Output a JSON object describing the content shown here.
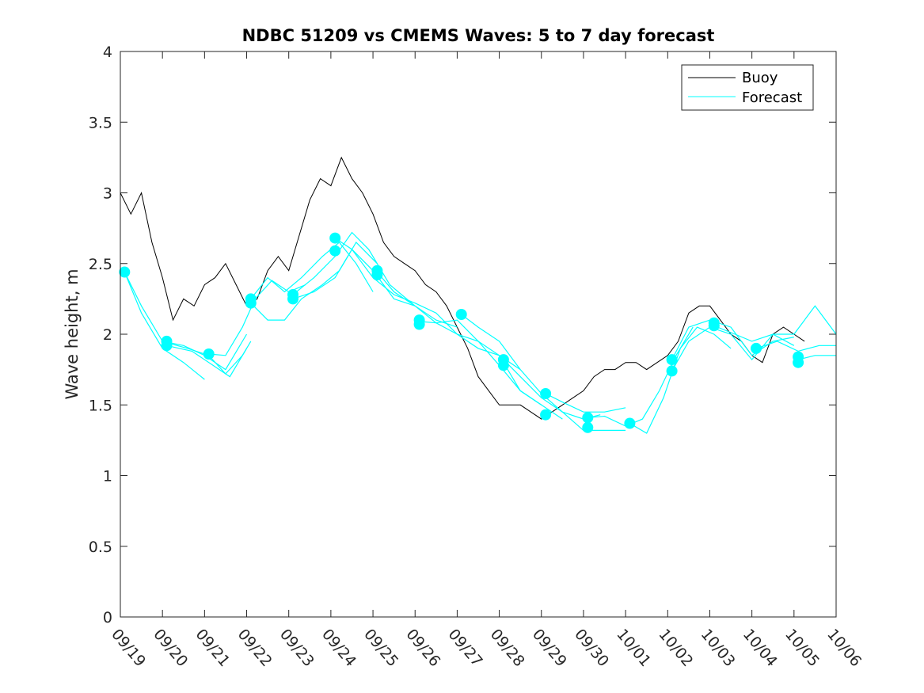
{
  "chart_data": {
    "type": "line",
    "title": "NDBC 51209 vs CMEMS Waves: 5 to 7 day forecast",
    "xlabel": "",
    "ylabel": "Wave height, m",
    "xlim": [
      0,
      17
    ],
    "ylim": [
      0,
      4
    ],
    "yticks": [
      0,
      0.5,
      1,
      1.5,
      2,
      2.5,
      3,
      3.5,
      4
    ],
    "ytick_labels": [
      "0",
      "0.5",
      "1",
      "1.5",
      "2",
      "2.5",
      "3",
      "3.5",
      "4"
    ],
    "xticks": [
      0,
      1,
      2,
      3,
      4,
      5,
      6,
      7,
      8,
      9,
      10,
      11,
      12,
      13,
      14,
      15,
      16,
      17
    ],
    "xtick_labels": [
      "09/19",
      "09/20",
      "09/21",
      "09/22",
      "09/23",
      "09/24",
      "09/25",
      "09/26",
      "09/27",
      "09/28",
      "09/29",
      "09/30",
      "10/01",
      "10/02",
      "10/03",
      "10/04",
      "10/05",
      "10/06"
    ],
    "legend": {
      "position": "top-right",
      "entries": [
        "Buoy",
        "Forecast"
      ]
    },
    "colors": {
      "buoy": "#000000",
      "forecast": "#00ffff"
    },
    "buoy": {
      "name": "Buoy",
      "points": [
        [
          0.0,
          3.0
        ],
        [
          0.25,
          2.85
        ],
        [
          0.5,
          3.0
        ],
        [
          0.75,
          2.65
        ],
        [
          1.0,
          2.4
        ],
        [
          1.25,
          2.1
        ],
        [
          1.5,
          2.25
        ],
        [
          1.75,
          2.2
        ],
        [
          2.0,
          2.35
        ],
        [
          2.25,
          2.4
        ],
        [
          2.5,
          2.5
        ],
        [
          2.75,
          2.35
        ],
        [
          3.0,
          2.2
        ],
        [
          3.25,
          2.25
        ],
        [
          3.5,
          2.45
        ],
        [
          3.75,
          2.55
        ],
        [
          4.0,
          2.45
        ],
        [
          4.25,
          2.7
        ],
        [
          4.5,
          2.95
        ],
        [
          4.75,
          3.1
        ],
        [
          5.0,
          3.05
        ],
        [
          5.25,
          3.25
        ],
        [
          5.5,
          3.1
        ],
        [
          5.75,
          3.0
        ],
        [
          6.0,
          2.85
        ],
        [
          6.25,
          2.65
        ],
        [
          6.5,
          2.55
        ],
        [
          6.75,
          2.5
        ],
        [
          7.0,
          2.45
        ],
        [
          7.25,
          2.35
        ],
        [
          7.5,
          2.3
        ],
        [
          7.75,
          2.2
        ],
        [
          8.0,
          2.05
        ],
        [
          8.25,
          1.9
        ],
        [
          8.5,
          1.7
        ],
        [
          8.75,
          1.6
        ],
        [
          9.0,
          1.5
        ],
        [
          9.25,
          1.5
        ],
        [
          9.5,
          1.5
        ],
        [
          9.75,
          1.45
        ],
        [
          10.0,
          1.4
        ],
        [
          10.25,
          1.45
        ],
        [
          10.5,
          1.5
        ],
        [
          10.75,
          1.55
        ],
        [
          11.0,
          1.6
        ],
        [
          11.25,
          1.7
        ],
        [
          11.5,
          1.75
        ],
        [
          11.75,
          1.75
        ],
        [
          12.0,
          1.8
        ],
        [
          12.25,
          1.8
        ],
        [
          12.5,
          1.75
        ],
        [
          12.75,
          1.8
        ],
        [
          13.0,
          1.85
        ],
        [
          13.25,
          1.95
        ],
        [
          13.5,
          2.15
        ],
        [
          13.75,
          2.2
        ],
        [
          14.0,
          2.2
        ],
        [
          14.25,
          2.1
        ],
        [
          14.5,
          2.0
        ],
        [
          14.75,
          1.95
        ],
        [
          15.0,
          1.85
        ],
        [
          15.25,
          1.8
        ],
        [
          15.5,
          2.0
        ],
        [
          15.75,
          2.05
        ],
        [
          16.0,
          2.0
        ],
        [
          16.25,
          1.95
        ]
      ]
    },
    "forecast": {
      "name": "Forecast",
      "series": [
        [
          [
            0.1,
            2.44
          ],
          [
            0.5,
            2.2
          ],
          [
            1.0,
            1.95
          ],
          [
            1.5,
            1.92
          ],
          [
            2.0,
            1.85
          ],
          [
            2.5,
            1.75
          ],
          [
            3.0,
            2.0
          ]
        ],
        [
          [
            0.1,
            2.44
          ],
          [
            0.5,
            2.15
          ],
          [
            1.0,
            1.9
          ],
          [
            1.5,
            1.8
          ],
          [
            2.0,
            1.68
          ]
        ],
        [
          [
            1.1,
            1.94
          ],
          [
            1.6,
            1.9
          ],
          [
            2.1,
            1.85
          ],
          [
            2.5,
            1.72
          ],
          [
            2.9,
            1.85
          ],
          [
            3.1,
            1.95
          ]
        ],
        [
          [
            1.1,
            1.92
          ],
          [
            1.7,
            1.88
          ],
          [
            2.2,
            1.78
          ],
          [
            2.6,
            1.7
          ],
          [
            3.0,
            1.9
          ]
        ],
        [
          [
            2.1,
            1.86
          ],
          [
            2.5,
            1.85
          ],
          [
            2.9,
            2.05
          ],
          [
            3.2,
            2.25
          ],
          [
            3.6,
            2.38
          ],
          [
            4.0,
            2.3
          ],
          [
            4.4,
            2.35
          ]
        ],
        [
          [
            3.1,
            2.25
          ],
          [
            3.5,
            2.4
          ],
          [
            3.9,
            2.3
          ],
          [
            4.3,
            2.4
          ],
          [
            4.8,
            2.55
          ],
          [
            5.2,
            2.65
          ],
          [
            5.6,
            2.5
          ],
          [
            6.0,
            2.3
          ]
        ],
        [
          [
            3.1,
            2.22
          ],
          [
            3.5,
            2.1
          ],
          [
            3.9,
            2.1
          ],
          [
            4.3,
            2.25
          ],
          [
            4.8,
            2.35
          ],
          [
            5.2,
            2.45
          ],
          [
            5.6,
            2.65
          ],
          [
            6.1,
            2.5
          ]
        ],
        [
          [
            4.1,
            2.28
          ],
          [
            4.6,
            2.4
          ],
          [
            5.1,
            2.55
          ],
          [
            5.5,
            2.72
          ],
          [
            5.9,
            2.6
          ],
          [
            6.4,
            2.35
          ],
          [
            7.0,
            2.2
          ]
        ],
        [
          [
            4.1,
            2.25
          ],
          [
            4.6,
            2.3
          ],
          [
            5.1,
            2.4
          ],
          [
            5.5,
            2.6
          ],
          [
            6.0,
            2.4
          ],
          [
            6.5,
            2.28
          ],
          [
            7.0,
            2.22
          ],
          [
            7.5,
            2.15
          ],
          [
            8.0,
            2.0
          ],
          [
            8.5,
            1.9
          ],
          [
            9.0,
            1.85
          ],
          [
            9.5,
            1.75
          ]
        ],
        [
          [
            5.1,
            2.68
          ],
          [
            5.5,
            2.6
          ],
          [
            6.0,
            2.45
          ],
          [
            6.5,
            2.25
          ],
          [
            7.0,
            2.2
          ],
          [
            7.5,
            2.1
          ],
          [
            8.0,
            2.05
          ]
        ],
        [
          [
            6.1,
            2.44
          ],
          [
            6.5,
            2.3
          ],
          [
            7.0,
            2.2
          ],
          [
            7.5,
            2.08
          ],
          [
            8.0,
            2.0
          ],
          [
            8.5,
            1.95
          ],
          [
            9.0,
            1.85
          ],
          [
            9.5,
            1.6
          ],
          [
            10.0,
            1.5
          ]
        ],
        [
          [
            7.1,
            2.09
          ],
          [
            7.5,
            2.08
          ],
          [
            8.0,
            2.1
          ],
          [
            8.5,
            1.95
          ],
          [
            9.0,
            1.78
          ],
          [
            9.5,
            1.6
          ],
          [
            10.0,
            1.5
          ],
          [
            10.5,
            1.4
          ]
        ],
        [
          [
            8.1,
            2.14
          ],
          [
            8.5,
            2.05
          ],
          [
            9.0,
            1.95
          ],
          [
            9.5,
            1.75
          ],
          [
            10.0,
            1.58
          ],
          [
            10.5,
            1.45
          ],
          [
            11.0,
            1.4
          ],
          [
            11.4,
            1.43
          ]
        ],
        [
          [
            9.1,
            1.82
          ],
          [
            9.5,
            1.7
          ],
          [
            10.0,
            1.55
          ],
          [
            10.5,
            1.45
          ],
          [
            11.0,
            1.32
          ],
          [
            11.5,
            1.32
          ],
          [
            12.0,
            1.32
          ]
        ],
        [
          [
            10.1,
            1.58
          ],
          [
            10.5,
            1.52
          ],
          [
            11.0,
            1.45
          ],
          [
            11.5,
            1.45
          ],
          [
            12.0,
            1.48
          ]
        ],
        [
          [
            11.1,
            1.41
          ],
          [
            11.5,
            1.42
          ],
          [
            12.0,
            1.35
          ],
          [
            12.4,
            1.4
          ],
          [
            12.8,
            1.6
          ],
          [
            13.2,
            1.85
          ],
          [
            13.6,
            2.05
          ]
        ],
        [
          [
            12.1,
            1.37
          ],
          [
            12.5,
            1.3
          ],
          [
            12.9,
            1.55
          ],
          [
            13.3,
            1.9
          ],
          [
            13.7,
            2.05
          ],
          [
            14.1,
            2.0
          ],
          [
            14.5,
            1.9
          ]
        ],
        [
          [
            13.1,
            1.82
          ],
          [
            13.5,
            2.05
          ],
          [
            14.0,
            2.1
          ],
          [
            14.5,
            2.05
          ],
          [
            15.0,
            1.85
          ],
          [
            15.5,
            1.95
          ],
          [
            16.0,
            1.98
          ]
        ],
        [
          [
            13.1,
            1.74
          ],
          [
            13.5,
            1.95
          ],
          [
            14.0,
            2.05
          ],
          [
            14.5,
            2.0
          ],
          [
            15.0,
            1.82
          ],
          [
            15.5,
            2.0
          ],
          [
            16.0,
            1.92
          ]
        ],
        [
          [
            14.1,
            2.06
          ],
          [
            14.6,
            2.0
          ],
          [
            15.0,
            1.95
          ],
          [
            15.5,
            2.0
          ],
          [
            16.0,
            2.0
          ],
          [
            16.5,
            2.2
          ],
          [
            17.0,
            2.0
          ]
        ],
        [
          [
            15.1,
            1.9
          ],
          [
            15.6,
            1.95
          ],
          [
            16.1,
            1.88
          ],
          [
            16.6,
            1.92
          ],
          [
            17.0,
            1.92
          ]
        ],
        [
          [
            16.1,
            1.82
          ],
          [
            16.5,
            1.85
          ],
          [
            17.0,
            1.85
          ]
        ]
      ],
      "markers": [
        [
          0.1,
          2.44
        ],
        [
          1.1,
          1.95
        ],
        [
          1.1,
          1.92
        ],
        [
          2.1,
          1.86
        ],
        [
          3.1,
          2.25
        ],
        [
          3.1,
          2.22
        ],
        [
          4.1,
          2.28
        ],
        [
          4.1,
          2.25
        ],
        [
          5.1,
          2.68
        ],
        [
          5.1,
          2.59
        ],
        [
          6.1,
          2.45
        ],
        [
          6.1,
          2.42
        ],
        [
          7.1,
          2.1
        ],
        [
          7.1,
          2.07
        ],
        [
          8.1,
          2.14
        ],
        [
          9.1,
          1.82
        ],
        [
          9.1,
          1.78
        ],
        [
          10.1,
          1.58
        ],
        [
          10.1,
          1.43
        ],
        [
          11.1,
          1.41
        ],
        [
          11.1,
          1.34
        ],
        [
          12.1,
          1.37
        ],
        [
          13.1,
          1.82
        ],
        [
          13.1,
          1.74
        ],
        [
          14.1,
          2.08
        ],
        [
          14.1,
          2.06
        ],
        [
          15.1,
          1.9
        ],
        [
          16.1,
          1.84
        ],
        [
          16.1,
          1.8
        ]
      ]
    }
  }
}
